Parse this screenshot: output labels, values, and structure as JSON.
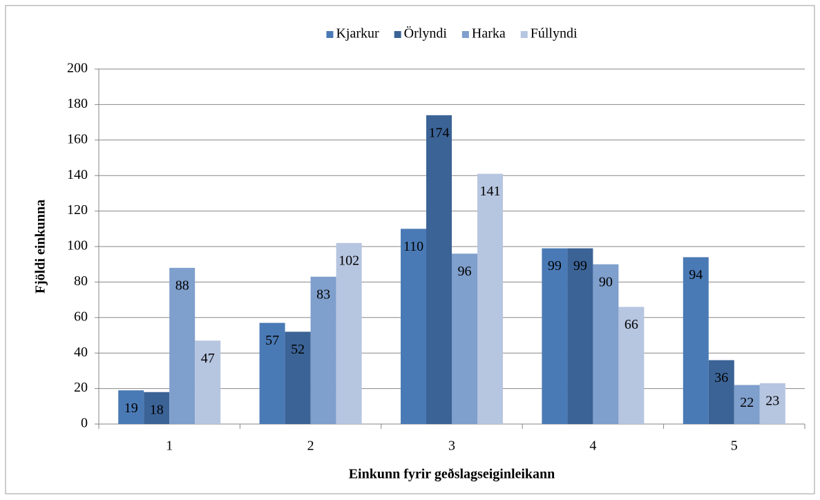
{
  "chart_data": {
    "type": "bar",
    "xlabel": "Einkunn fyrir geðslagseiginleikann",
    "ylabel": "Fjöldi einkunna",
    "categories": [
      "1",
      "2",
      "3",
      "4",
      "5"
    ],
    "series": [
      {
        "name": "Kjarkur",
        "color": "#4a7ab5",
        "values": [
          19,
          57,
          110,
          99,
          94
        ]
      },
      {
        "name": "Örlyndi",
        "color": "#3b6396",
        "values": [
          18,
          52,
          174,
          99,
          36
        ]
      },
      {
        "name": "Harka",
        "color": "#7f9fcc",
        "values": [
          88,
          83,
          96,
          90,
          22
        ]
      },
      {
        "name": "Fúllyndi",
        "color": "#b6c5e0",
        "values": [
          47,
          102,
          141,
          66,
          23
        ]
      }
    ],
    "ylim": [
      0,
      200
    ],
    "yticks": [
      0,
      20,
      40,
      60,
      80,
      100,
      120,
      140,
      160,
      180,
      200
    ],
    "grid": true,
    "legend": "top"
  }
}
